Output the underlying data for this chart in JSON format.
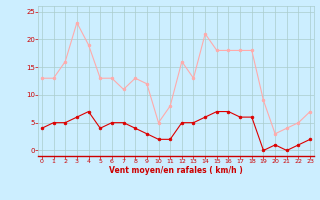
{
  "x": [
    0,
    1,
    2,
    3,
    4,
    5,
    6,
    7,
    8,
    9,
    10,
    11,
    12,
    13,
    14,
    15,
    16,
    17,
    18,
    19,
    20,
    21,
    22,
    23
  ],
  "wind_avg": [
    4,
    5,
    5,
    6,
    7,
    4,
    5,
    5,
    4,
    3,
    2,
    2,
    5,
    5,
    6,
    7,
    7,
    6,
    6,
    0,
    1,
    0,
    1,
    2
  ],
  "wind_gust": [
    13,
    13,
    16,
    23,
    19,
    13,
    13,
    11,
    13,
    12,
    5,
    8,
    16,
    13,
    21,
    18,
    18,
    18,
    18,
    9,
    3,
    4,
    5,
    7
  ],
  "avg_color": "#dd0000",
  "gust_color": "#ffaaaa",
  "bg_color": "#cceeff",
  "grid_color": "#aacccc",
  "xlabel": "Vent moyen/en rafales ( km/h )",
  "xlabel_color": "#cc0000",
  "tick_color": "#cc0000",
  "ylim": [
    -1,
    26
  ],
  "yticks": [
    0,
    5,
    10,
    15,
    20,
    25
  ],
  "xticks": [
    0,
    1,
    2,
    3,
    4,
    5,
    6,
    7,
    8,
    9,
    10,
    11,
    12,
    13,
    14,
    15,
    16,
    17,
    18,
    19,
    20,
    21,
    22,
    23
  ]
}
